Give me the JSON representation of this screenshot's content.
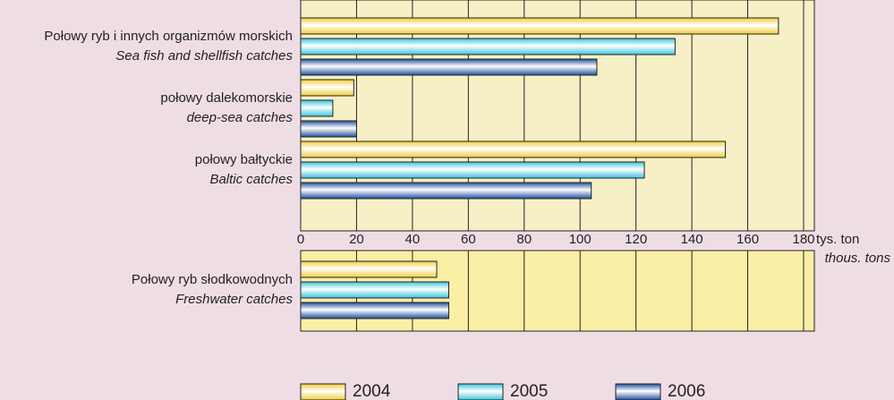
{
  "chart_data": [
    {
      "type": "bar",
      "categories": [
        "Połowy ryb i innych organizmów morskich",
        "połowy dalekomorskie",
        "połowy bałtyckie"
      ],
      "categories_en": [
        "Sea fish and shellfish catches",
        "deep-sea catches",
        "Baltic catches"
      ],
      "series": [
        {
          "name": "2004",
          "color": "#f2cc3a",
          "values": [
            171,
            19,
            152
          ]
        },
        {
          "name": "2005",
          "color": "#3cc4de",
          "values": [
            134,
            11.5,
            123
          ]
        },
        {
          "name": "2006",
          "color": "#1f4f9e",
          "values": [
            106,
            20,
            104
          ]
        }
      ],
      "xlim": [
        0,
        180
      ],
      "xticks": [
        0,
        20,
        40,
        60,
        80,
        100,
        120,
        140,
        160,
        180
      ],
      "xlabel": "tys. ton",
      "xlabel_en": "thous. tons",
      "grid": true,
      "legend": "bottom"
    },
    {
      "type": "bar",
      "categories": [
        "Połowy ryb słodkowodnych"
      ],
      "categories_en": [
        "Freshwater catches"
      ],
      "series": [
        {
          "name": "2004",
          "color": "#f2cc3a",
          "values": [
            48.7
          ]
        },
        {
          "name": "2005",
          "color": "#3cc4de",
          "values": [
            53
          ]
        },
        {
          "name": "2006",
          "color": "#1f4f9e",
          "values": [
            53
          ]
        }
      ],
      "xlim": [
        0,
        180
      ],
      "grid": true
    }
  ]
}
